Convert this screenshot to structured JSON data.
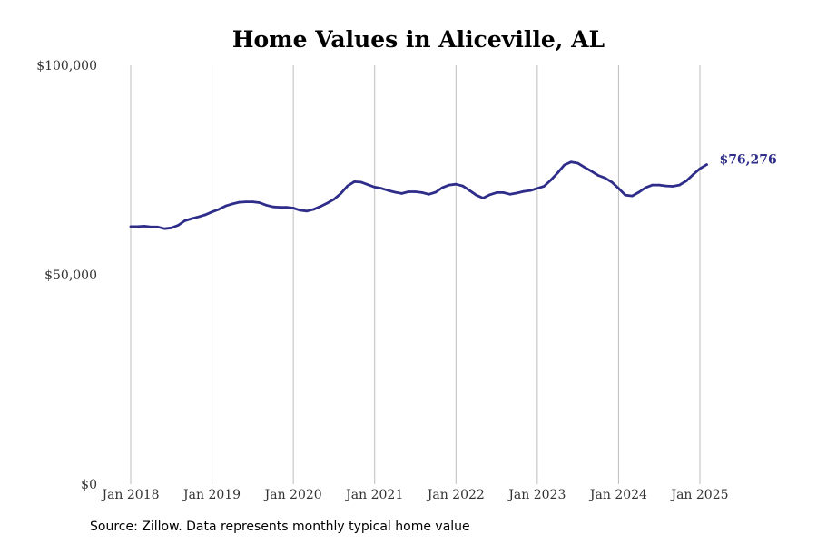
{
  "chart_data": {
    "type": "line",
    "title": "Home Values in Aliceville, AL",
    "xlabel": "",
    "ylabel": "",
    "ylim": [
      0,
      100000
    ],
    "y_ticks": [
      {
        "value": 0,
        "label": "$0"
      },
      {
        "value": 50000,
        "label": "$50,000"
      },
      {
        "value": 100000,
        "label": "$100,000"
      }
    ],
    "x_ticks": [
      {
        "value": 2018.0,
        "label": "Jan 2018"
      },
      {
        "value": 2019.0,
        "label": "Jan 2019"
      },
      {
        "value": 2020.0,
        "label": "Jan 2020"
      },
      {
        "value": 2021.0,
        "label": "Jan 2021"
      },
      {
        "value": 2022.0,
        "label": "Jan 2022"
      },
      {
        "value": 2023.0,
        "label": "Jan 2023"
      },
      {
        "value": 2024.0,
        "label": "Jan 2024"
      },
      {
        "value": 2025.0,
        "label": "Jan 2025"
      }
    ],
    "xlim": [
      2018.0,
      2025.0833
    ],
    "grid": "vertical",
    "series": [
      {
        "color": "#2e2d8a",
        "end_label": "$76,276",
        "x": [
          "2018-01",
          "2018-02",
          "2018-03",
          "2018-04",
          "2018-05",
          "2018-06",
          "2018-07",
          "2018-08",
          "2018-09",
          "2018-10",
          "2018-11",
          "2018-12",
          "2019-01",
          "2019-02",
          "2019-03",
          "2019-04",
          "2019-05",
          "2019-06",
          "2019-07",
          "2019-08",
          "2019-09",
          "2019-10",
          "2019-11",
          "2019-12",
          "2020-01",
          "2020-02",
          "2020-03",
          "2020-04",
          "2020-05",
          "2020-06",
          "2020-07",
          "2020-08",
          "2020-09",
          "2020-10",
          "2020-11",
          "2020-12",
          "2021-01",
          "2021-02",
          "2021-03",
          "2021-04",
          "2021-05",
          "2021-06",
          "2021-07",
          "2021-08",
          "2021-09",
          "2021-10",
          "2021-11",
          "2021-12",
          "2022-01",
          "2022-02",
          "2022-03",
          "2022-04",
          "2022-05",
          "2022-06",
          "2022-07",
          "2022-08",
          "2022-09",
          "2022-10",
          "2022-11",
          "2022-12",
          "2023-01",
          "2023-02",
          "2023-03",
          "2023-04",
          "2023-05",
          "2023-06",
          "2023-07",
          "2023-08",
          "2023-09",
          "2023-10",
          "2023-11",
          "2023-12",
          "2024-01",
          "2024-02",
          "2024-03",
          "2024-04",
          "2024-05",
          "2024-06",
          "2024-07",
          "2024-08",
          "2024-09",
          "2024-10",
          "2024-11",
          "2024-12",
          "2025-01",
          "2025-02"
        ],
        "y": [
          61500,
          61500,
          61600,
          61400,
          61400,
          61000,
          61200,
          61800,
          62900,
          63400,
          63800,
          64300,
          65000,
          65600,
          66400,
          66900,
          67300,
          67400,
          67400,
          67200,
          66600,
          66200,
          66100,
          66100,
          65900,
          65400,
          65200,
          65600,
          66300,
          67100,
          68000,
          69400,
          71200,
          72200,
          72100,
          71500,
          70900,
          70600,
          70100,
          69700,
          69400,
          69800,
          69800,
          69600,
          69200,
          69700,
          70800,
          71400,
          71600,
          71200,
          70100,
          69000,
          68300,
          69100,
          69600,
          69600,
          69200,
          69500,
          69900,
          70100,
          70600,
          71100,
          72600,
          74300,
          76200,
          76900,
          76600,
          75600,
          74700,
          73700,
          73100,
          72100,
          70600,
          69000,
          68800,
          69700,
          70800,
          71400,
          71400,
          71200,
          71100,
          71400,
          72400,
          73900,
          75300,
          76276
        ]
      }
    ]
  },
  "source_text": "Source: Zillow. Data represents monthly typical home value"
}
